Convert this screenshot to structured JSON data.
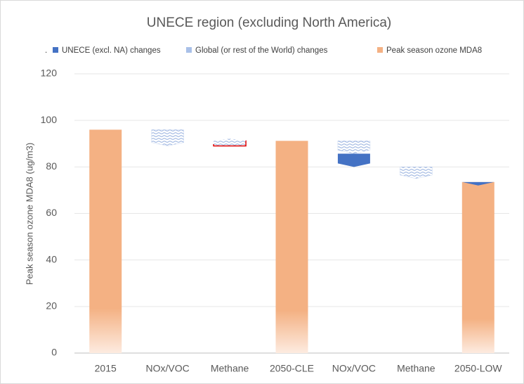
{
  "chart_data": {
    "type": "waterfall",
    "title": "UNECE region (excluding North America)",
    "legend_note": ".",
    "y_label": "Peak season ozone MDA8 (ug/m3)",
    "categories": [
      "2015",
      "NOx/VOC",
      "Methane",
      "2050-CLE",
      "NOx/VOC",
      "Methane",
      "2050-LOW"
    ],
    "series": [
      {
        "name": "UNECE (excl. NA) changes",
        "color": "#4472c4",
        "role": "change",
        "values": [
          null,
          null,
          null,
          null,
          -5.7,
          null,
          -1.5
        ]
      },
      {
        "name": "Global (or rest of the World) changes",
        "color": "#a9c0e8",
        "role": "change",
        "values": [
          null,
          -7,
          2.2,
          null,
          -5.5,
          -5,
          null
        ]
      },
      {
        "name": "Peak season ozone MDA8",
        "color": "#f4b183",
        "role": "total",
        "values": [
          96,
          null,
          null,
          91.2,
          null,
          null,
          73.5
        ]
      }
    ],
    "ylim": [
      0,
      120
    ],
    "yticks": [
      0,
      20,
      40,
      60,
      80,
      100,
      120
    ],
    "grid": true
  }
}
